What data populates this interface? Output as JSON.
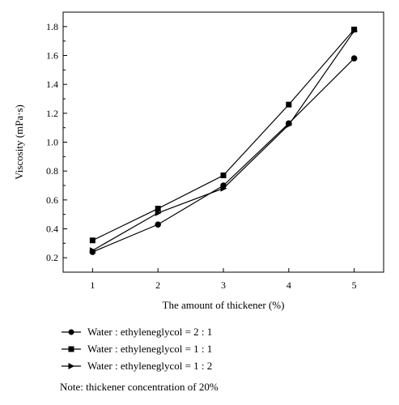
{
  "chart_data": {
    "type": "line",
    "xlabel": "The amount of thickener (%)",
    "ylabel": "Viscosity (mPa·s)",
    "xlim": [
      0.55,
      5.45
    ],
    "ylim": [
      0.1,
      1.9
    ],
    "xticks": [
      1,
      2,
      3,
      4,
      5
    ],
    "yticks": [
      0.2,
      0.4,
      0.6,
      0.8,
      1.0,
      1.2,
      1.4,
      1.6,
      1.8
    ],
    "ytick_labels": [
      "0.2",
      "0.4",
      "0.6",
      "0.8",
      "1.0",
      "1.2",
      "1.4",
      "1.6",
      "1.8"
    ],
    "x": [
      1,
      2,
      3,
      4,
      5
    ],
    "series": [
      {
        "name": "Water : ethyleneglycol = 2 : 1",
        "marker": "circle",
        "values": [
          0.24,
          0.43,
          0.7,
          1.13,
          1.58
        ]
      },
      {
        "name": "Water : ethyleneglycol = 1 : 1",
        "marker": "square",
        "values": [
          0.32,
          0.54,
          0.77,
          1.26,
          1.78
        ]
      },
      {
        "name": "Water : ethyleneglycol = 1 : 2",
        "marker": "triangle-right",
        "values": [
          0.25,
          0.51,
          0.68,
          1.12,
          1.77
        ]
      }
    ],
    "grid": false,
    "legend_position": "bottom"
  },
  "note": "Note: thickener concentration of 20%",
  "colors": {
    "line": "#000000",
    "background": "#ffffff"
  }
}
